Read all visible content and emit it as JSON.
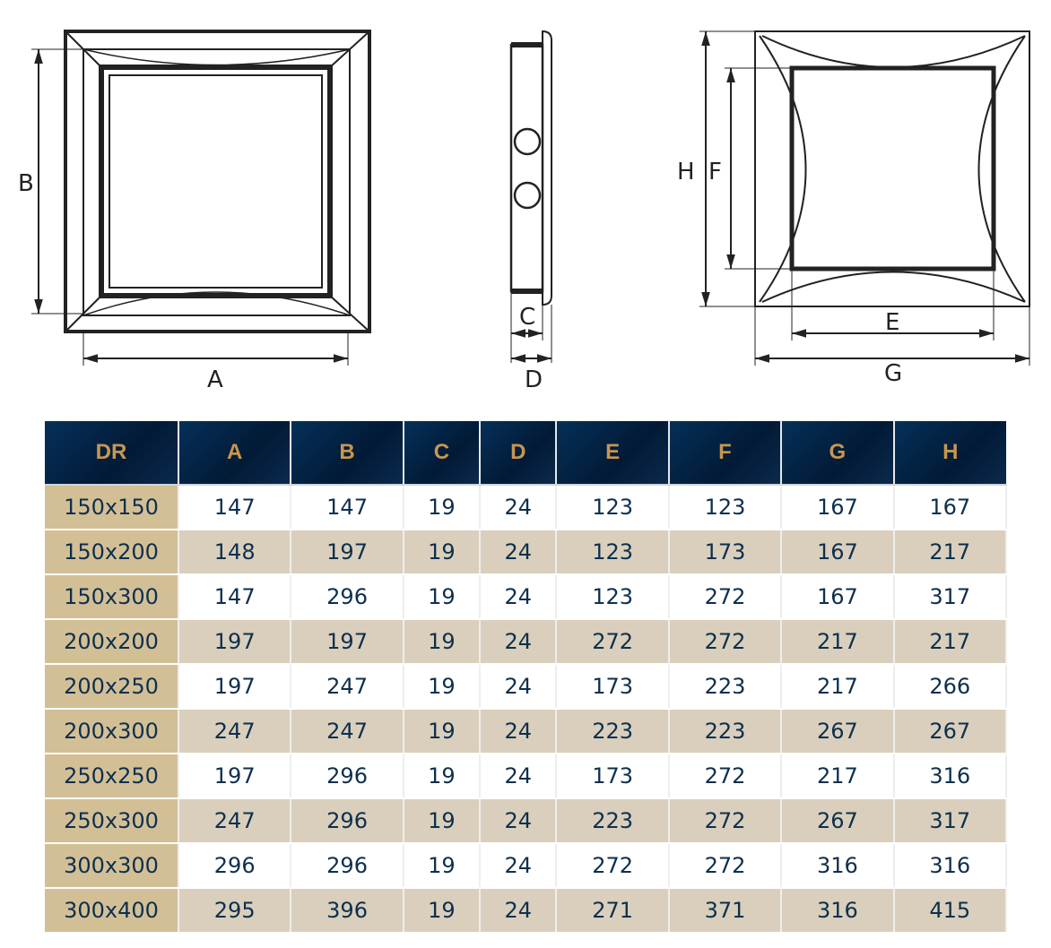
{
  "drawing_labels": {
    "A": "A",
    "B": "B",
    "C": "C",
    "D": "D",
    "E": "E",
    "F": "F",
    "G": "G",
    "H": "H"
  },
  "table": {
    "headers": [
      "DR",
      "A",
      "B",
      "C",
      "D",
      "E",
      "F",
      "G",
      "H"
    ],
    "rows": [
      [
        "150x150",
        "147",
        "147",
        "19",
        "24",
        "123",
        "123",
        "167",
        "167"
      ],
      [
        "150x200",
        "148",
        "197",
        "19",
        "24",
        "123",
        "173",
        "167",
        "217"
      ],
      [
        "150x300",
        "147",
        "296",
        "19",
        "24",
        "123",
        "272",
        "167",
        "317"
      ],
      [
        "200x200",
        "197",
        "197",
        "19",
        "24",
        "272",
        "272",
        "217",
        "217"
      ],
      [
        "200x250",
        "197",
        "247",
        "19",
        "24",
        "173",
        "223",
        "217",
        "266"
      ],
      [
        "200x300",
        "247",
        "247",
        "19",
        "24",
        "223",
        "223",
        "267",
        "267"
      ],
      [
        "250x250",
        "197",
        "296",
        "19",
        "24",
        "173",
        "272",
        "217",
        "316"
      ],
      [
        "250x300",
        "247",
        "296",
        "19",
        "24",
        "223",
        "272",
        "267",
        "317"
      ],
      [
        "300x300",
        "296",
        "296",
        "19",
        "24",
        "272",
        "272",
        "316",
        "316"
      ],
      [
        "300x400",
        "295",
        "396",
        "19",
        "24",
        "271",
        "371",
        "316",
        "415"
      ]
    ]
  },
  "colors": {
    "header_bg": "#031f3f",
    "header_text": "#c9964e",
    "first_col": "#d3bf96",
    "alt_row": "#d9cfbc",
    "text": "#0e2f4d"
  }
}
